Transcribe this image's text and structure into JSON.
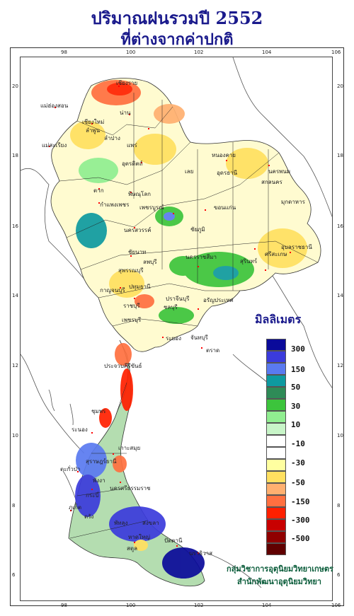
{
  "title_line1": "ปริมาณฝนรวมปี  2552",
  "title_line2": "ที่ต่างจากค่าปกติ",
  "longitude_ticks": [
    "98",
    "100",
    "102",
    "104",
    "106"
  ],
  "latitude_ticks": [
    "20",
    "18",
    "16",
    "14",
    "12",
    "10",
    "8",
    "6"
  ],
  "legend": {
    "title": "มิลลิเมตร",
    "labels": [
      "300",
      "150",
      "50",
      "30",
      "10",
      "-10",
      "-30",
      "-50",
      "-150",
      "-300",
      "-500"
    ],
    "colors": [
      "#0a0a9a",
      "#3b3bdc",
      "#5a7af0",
      "#0e9aa0",
      "#2e8b57",
      "#3cc43c",
      "#90ee90",
      "#c8f5c8",
      "#ffffff",
      "#ffffff",
      "#ffffa0",
      "#ffe060",
      "#ffb070",
      "#ff7040",
      "#ff2000",
      "#c80000",
      "#900000",
      "#600000"
    ]
  },
  "credit_line1": "กลุ่มวิชาการอุตุนิยมวิทยาเกษตร",
  "credit_line2": "สำนักพัฒนาอุตุนิยมวิทยา",
  "places": [
    "เชียงราย",
    "แม่ฮ่องสอน",
    "น่าน",
    "เชียงใหม่",
    "ลำพูน",
    "ลำปาง",
    "แพร่",
    "แม่สะเรียง",
    "อุตรดิตถ์",
    "หนองคาย",
    "นครพนม",
    "อุดรธานี",
    "สกลนคร",
    "เลย",
    "มุกดาหาร",
    "ตาก",
    "พิษณุโลก",
    "กำแพงเพชร",
    "เพชรบูรณ์",
    "ขอนแก่น",
    "นครสวรรค์",
    "ชัยภูมิ",
    "อุบลราชธานี",
    "ชัยนาท",
    "นครราชสีมา",
    "สุรินทร์",
    "ลพบุรี",
    "ศรีสะเกษ",
    "สุพรรณบุรี",
    "กาญจนบุรี",
    "ปทุมธานี",
    "ปราจีนบุรี",
    "อรัญประเทศ",
    "ราชบุรี",
    "ชลบุรี",
    "เพชรบุรี",
    "ระยอง",
    "จันทบุรี",
    "ตราด",
    "ประจวบคีรีขันธ์",
    "ชุมพร",
    "ระนอง",
    "เกาะสมุย",
    "สุราษฎร์ธานี",
    "ตะกั่วป่า",
    "พังงา",
    "นครศรีธรรมราช",
    "ภูเก็ต",
    "กระบี่",
    "ตรัง",
    "พัทลุง",
    "สงขลา",
    "ปัตตานี",
    "นราธิวาส",
    "สตูล",
    "หาดใหญ่"
  ]
}
